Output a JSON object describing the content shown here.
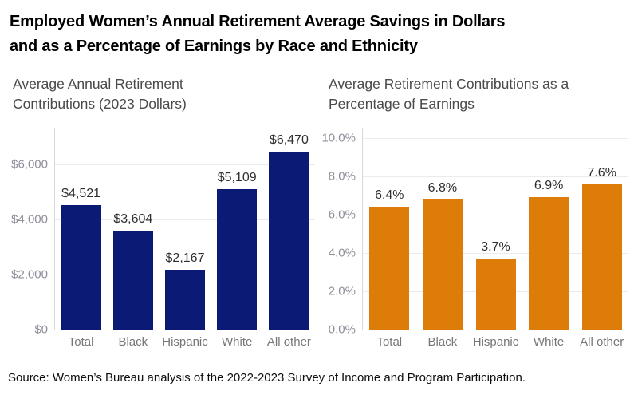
{
  "title": {
    "line1": "Employed Women’s Annual Retirement Average Savings in Dollars",
    "line2": "and as a Percentage of Earnings by Race and Ethnicity"
  },
  "source": "Source: Women’s Bureau analysis of the 2022-2023 Survey of Income and Program Participation.",
  "colors": {
    "navy_bar": "#0B1B75",
    "orange_bar": "#DD7C08",
    "gridline": "#ebebee",
    "axis_label_gray": "#8f8f9b",
    "category_gray": "#767676"
  },
  "chart_data": [
    {
      "type": "bar",
      "title": "Average Annual Retirement Contributions (2023 Dollars)",
      "categories": [
        "Total",
        "Black",
        "Hispanic",
        "White",
        "All other"
      ],
      "values": [
        4521,
        3604,
        2167,
        5109,
        6470
      ],
      "value_labels": [
        "$4,521",
        "$3,604",
        "$2,167",
        "$5,109",
        "$6,470"
      ],
      "bar_color": "#0B1B75",
      "xlabel": "",
      "ylabel": "",
      "ylim": [
        0,
        7333
      ],
      "grid": true,
      "legend": "none",
      "yticks": [
        {
          "label": "$0",
          "value": 0
        },
        {
          "label": "$2,000",
          "value": 2000
        },
        {
          "label": "$4,000",
          "value": 4000
        },
        {
          "label": "$6,000",
          "value": 6000
        }
      ]
    },
    {
      "type": "bar",
      "title": "Average Retirement Contributions as a Percentage of Earnings",
      "categories": [
        "Total",
        "Black",
        "Hispanic",
        "White",
        "All other"
      ],
      "values": [
        6.4,
        6.8,
        3.7,
        6.9,
        7.6
      ],
      "value_labels": [
        "6.4%",
        "6.8%",
        "3.7%",
        "6.9%",
        "7.6%"
      ],
      "bar_color": "#DD7C08",
      "xlabel": "",
      "ylabel": "",
      "ylim": [
        0,
        10.54
      ],
      "grid": true,
      "legend": "none",
      "yticks": [
        {
          "label": "0.0%",
          "value": 0
        },
        {
          "label": "2.0%",
          "value": 2
        },
        {
          "label": "4.0%",
          "value": 4
        },
        {
          "label": "6.0%",
          "value": 6
        },
        {
          "label": "8.0%",
          "value": 8
        },
        {
          "label": "10.0%",
          "value": 10
        }
      ]
    }
  ]
}
